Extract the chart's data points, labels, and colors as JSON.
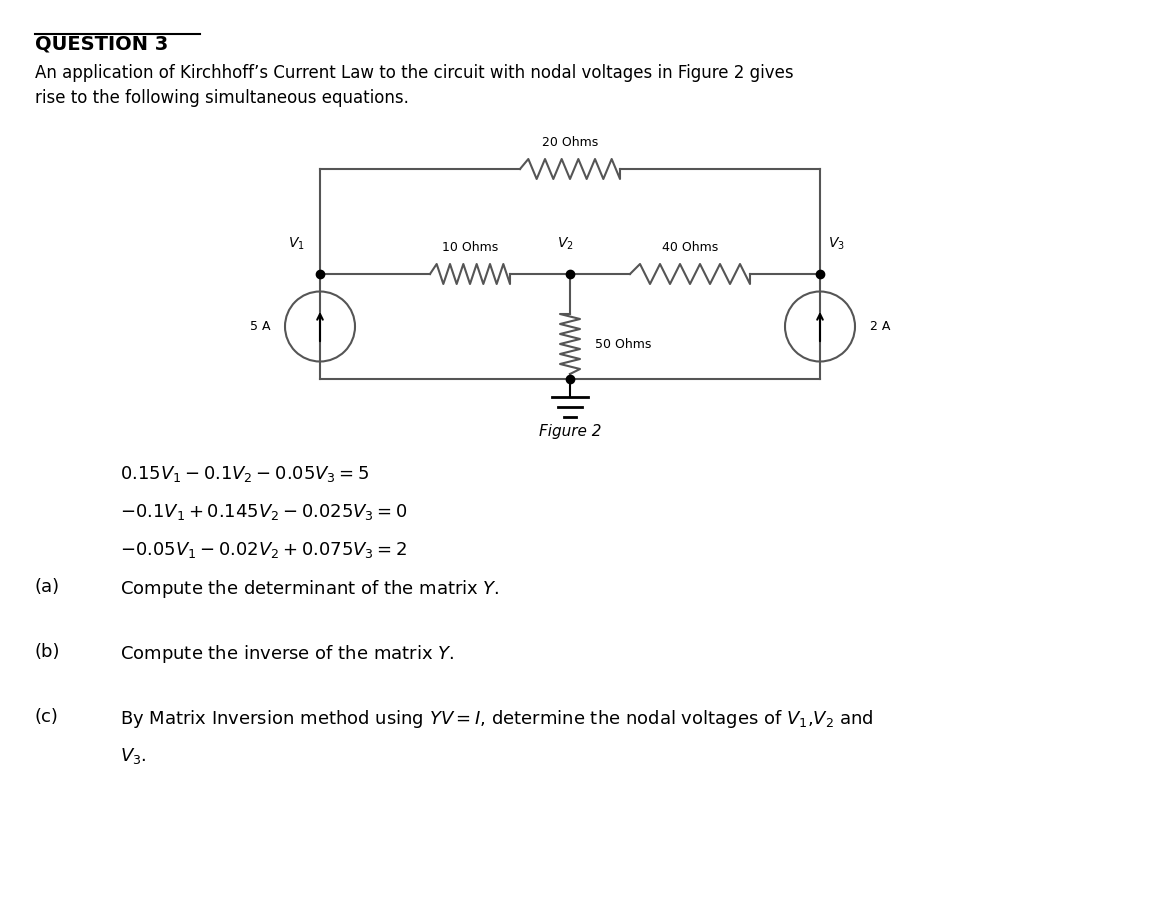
{
  "title": "QUESTION 3",
  "bg_color": "#ffffff",
  "text_color": "#000000",
  "intro_text": "An application of Kirchhoff’s Current Law to the circuit with nodal voltages in Figure 2 gives\nrise to the following simultaneous equations.",
  "figure_label": "Figure 2",
  "eq1": "0.15$V_1$ −0.1$V_2$ −0.05$V_3$ = 5",
  "eq2": "−0.1$V_1$ +0.145$V_2$ −0.025$V_3$ = 0",
  "eq3": "−0.05$V_1$ −0.02$V_2$ +0.075$V_3$ = 2",
  "part_a": "(a)",
  "part_a_text": "Compute the determinant of the matrix Y.",
  "part_b": "(b)",
  "part_b_text": "Compute the inverse of the matrix Y.",
  "part_c": "(c)",
  "part_c_text": "By Matrix Inversion method using $YV = I$, determine the nodal voltages of $V_1$,$V_2$ and\n$V_3$.",
  "font_size_title": 14,
  "font_size_body": 12,
  "font_size_circuit": 10
}
